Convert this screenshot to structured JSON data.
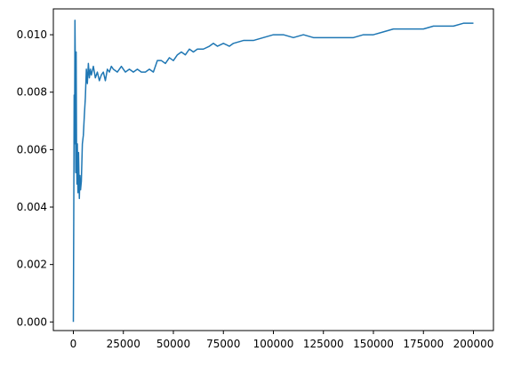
{
  "chart_data": {
    "type": "line",
    "title": "",
    "xlabel": "",
    "ylabel": "",
    "xlim": [
      -10000,
      210000
    ],
    "ylim": [
      -0.0003,
      0.0109
    ],
    "grid": false,
    "x_ticks": [
      0,
      25000,
      50000,
      75000,
      100000,
      125000,
      150000,
      175000,
      200000
    ],
    "x_tick_labels": [
      "0",
      "25000",
      "50000",
      "75000",
      "100000",
      "125000",
      "150000",
      "175000",
      "200000"
    ],
    "y_ticks": [
      0.0,
      0.002,
      0.004,
      0.006,
      0.008,
      0.01
    ],
    "y_tick_labels": [
      "0.000",
      "0.002",
      "0.004",
      "0.006",
      "0.008",
      "0.010"
    ],
    "series": [
      {
        "color": "#1f77b4",
        "x": [
          0,
          200,
          400,
          600,
          800,
          1000,
          1200,
          1400,
          1600,
          1800,
          2000,
          2300,
          2600,
          3000,
          3300,
          3600,
          4000,
          4500,
          5000,
          5500,
          6000,
          6500,
          7000,
          7500,
          8000,
          8500,
          9000,
          10000,
          11000,
          12000,
          13000,
          14000,
          15000,
          16000,
          17000,
          18000,
          19000,
          20000,
          22000,
          24000,
          26000,
          28000,
          30000,
          32000,
          34000,
          36000,
          38000,
          40000,
          42000,
          44000,
          46000,
          48000,
          50000,
          52000,
          54000,
          56000,
          58000,
          60000,
          62000,
          65000,
          68000,
          70000,
          72000,
          75000,
          78000,
          80000,
          85000,
          90000,
          95000,
          100000,
          105000,
          110000,
          115000,
          120000,
          125000,
          130000,
          135000,
          140000,
          145000,
          150000,
          155000,
          160000,
          165000,
          170000,
          175000,
          180000,
          185000,
          190000,
          195000,
          200000
        ],
        "y": [
          0.0,
          0.0036,
          0.0079,
          0.0062,
          0.0105,
          0.0088,
          0.0052,
          0.0094,
          0.006,
          0.0048,
          0.0062,
          0.0045,
          0.0059,
          0.0043,
          0.0051,
          0.0046,
          0.0049,
          0.0062,
          0.0065,
          0.0072,
          0.0078,
          0.0088,
          0.0083,
          0.009,
          0.0085,
          0.0088,
          0.0086,
          0.0089,
          0.0085,
          0.0087,
          0.0084,
          0.0086,
          0.0087,
          0.0084,
          0.0088,
          0.0087,
          0.0089,
          0.0088,
          0.0087,
          0.0089,
          0.0087,
          0.0088,
          0.0087,
          0.0088,
          0.0087,
          0.0087,
          0.0088,
          0.0087,
          0.0091,
          0.0091,
          0.009,
          0.0092,
          0.0091,
          0.0093,
          0.0094,
          0.0093,
          0.0095,
          0.0094,
          0.0095,
          0.0095,
          0.0096,
          0.0097,
          0.0096,
          0.0097,
          0.0096,
          0.0097,
          0.0098,
          0.0098,
          0.0099,
          0.01,
          0.01,
          0.0099,
          0.01,
          0.0099,
          0.0099,
          0.0099,
          0.0099,
          0.0099,
          0.01,
          0.01,
          0.0101,
          0.0102,
          0.0102,
          0.0102,
          0.0102,
          0.0103,
          0.0103,
          0.0103,
          0.0104,
          0.0104
        ]
      }
    ]
  }
}
